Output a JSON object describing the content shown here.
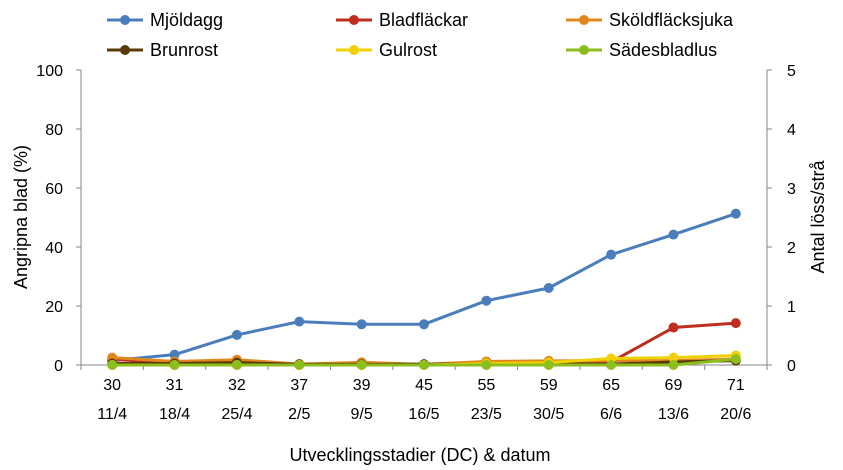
{
  "chart_data": {
    "type": "line",
    "categories": [
      "30",
      "31",
      "32",
      "37",
      "39",
      "45",
      "55",
      "59",
      "65",
      "69",
      "71"
    ],
    "dates": [
      "11/4",
      "18/4",
      "25/4",
      "2/5",
      "9/5",
      "16/5",
      "23/5",
      "30/5",
      "6/6",
      "13/6",
      "20/6"
    ],
    "xlabel": "Utvecklingsstadier (DC) & datum",
    "ylabel": "Angripna blad (%)",
    "y2label": "Antal löss/strå",
    "ylim": [
      0,
      100
    ],
    "y2lim": [
      0,
      5
    ],
    "yticks": [
      "0",
      "20",
      "40",
      "60",
      "80",
      "100"
    ],
    "y2ticks": [
      "0",
      "1",
      "2",
      "3",
      "4",
      "5"
    ],
    "grid": false,
    "legend_position": "top",
    "series": [
      {
        "name": "Mjöldagg",
        "color": "#4a7ebb",
        "axis": "left",
        "values": [
          1.5,
          3.5,
          10.2,
          14.7,
          13.8,
          13.8,
          21.8,
          26.1,
          37.4,
          44.2,
          51.3
        ]
      },
      {
        "name": "Bladfläckar",
        "color": "#be2d1e",
        "axis": "left",
        "values": [
          2.0,
          0.5,
          1.0,
          0.3,
          0.3,
          0.2,
          0.5,
          0.5,
          1.0,
          12.7,
          14.2
        ]
      },
      {
        "name": "Sköldfläcksjuka",
        "color": "#e0861e",
        "axis": "left",
        "values": [
          2.5,
          1.2,
          1.8,
          0.3,
          0.9,
          0.2,
          1.2,
          1.4,
          1.5,
          1.5,
          2.0
        ]
      },
      {
        "name": "Brunrost",
        "color": "#5a3b05",
        "axis": "left",
        "values": [
          0.5,
          0.5,
          0.8,
          0.2,
          0.2,
          0.3,
          0.4,
          0.3,
          0.3,
          1.0,
          1.5
        ]
      },
      {
        "name": "Gulrost",
        "color": "#f0d000",
        "axis": "left",
        "values": [
          0,
          0,
          0,
          0,
          0,
          0,
          0.5,
          0.8,
          2.2,
          2.5,
          3.2
        ]
      },
      {
        "name": "Sädesbladlus",
        "color": "#8cbe1e",
        "axis": "right",
        "values": [
          0,
          0,
          0,
          0,
          0,
          0,
          0,
          0,
          0,
          0,
          0.1
        ]
      }
    ]
  }
}
